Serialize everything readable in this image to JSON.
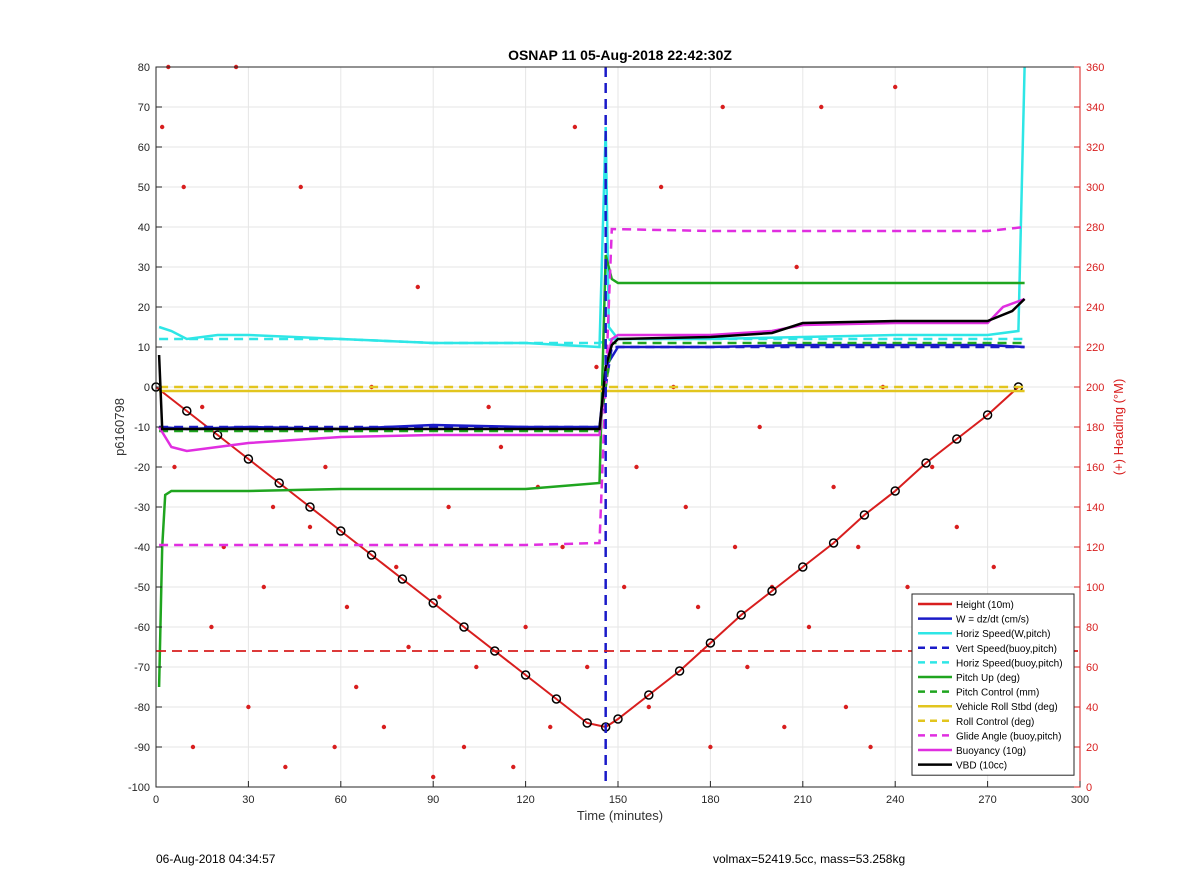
{
  "chart_data": {
    "type": "line",
    "title": "OSNAP 11 05-Aug-2018 22:42:30Z",
    "xlabel": "Time (minutes)",
    "ylabel": "p6160798",
    "y2label": "(+) Heading (°M)",
    "xlim": [
      0,
      300
    ],
    "ylim": [
      -100,
      80
    ],
    "y2lim": [
      0,
      360
    ],
    "xticks": [
      0,
      30,
      60,
      90,
      120,
      150,
      180,
      210,
      240,
      270,
      300
    ],
    "yticks": [
      -100,
      -90,
      -80,
      -70,
      -60,
      -50,
      -40,
      -30,
      -20,
      -10,
      0,
      10,
      20,
      30,
      40,
      50,
      60,
      70,
      80
    ],
    "y2ticks": [
      0,
      20,
      40,
      60,
      80,
      100,
      120,
      140,
      160,
      180,
      200,
      220,
      240,
      260,
      280,
      300,
      320,
      340,
      360
    ],
    "grid": true,
    "legend_position": "bottom-right",
    "colors": {
      "red": "#d81e1e",
      "blue": "#1a1ac8",
      "cyan": "#2ee6e6",
      "green": "#1fa51f",
      "yellow": "#e2c51f",
      "magenta": "#e02ee0",
      "black": "#000000",
      "right_axis": "#d81e1e"
    },
    "vertical_line_x": 146,
    "horizontal_line_y": -66,
    "series": [
      {
        "name": "Height (10m)",
        "color": "#d81e1e",
        "style": "solid",
        "x": [
          0,
          10,
          20,
          30,
          40,
          50,
          60,
          70,
          80,
          90,
          100,
          110,
          120,
          130,
          140,
          146,
          150,
          160,
          170,
          180,
          190,
          200,
          210,
          220,
          230,
          240,
          250,
          260,
          270,
          280
        ],
        "y": [
          0,
          -6,
          -12,
          -18,
          -24,
          -30,
          -36,
          -42,
          -48,
          -54,
          -60,
          -66,
          -72,
          -78,
          -84,
          -85,
          -83,
          -77,
          -71,
          -64,
          -57,
          -51,
          -45,
          -39,
          -32,
          -26,
          -19,
          -13,
          -7,
          0
        ]
      },
      {
        "name": "W = dz/dt (cm/s)",
        "color": "#1a1ac8",
        "style": "solid",
        "x": [
          1,
          10,
          30,
          60,
          90,
          120,
          144,
          146,
          150,
          180,
          210,
          240,
          270,
          282
        ],
        "y": [
          -10,
          -10.5,
          -10,
          -10.5,
          -9.5,
          -10,
          -10,
          5,
          10,
          10,
          10.5,
          10.5,
          10.5,
          10
        ]
      },
      {
        "name": "Horiz Speed(W,pitch)",
        "color": "#2ee6e6",
        "style": "solid",
        "x": [
          1,
          5,
          10,
          20,
          30,
          60,
          90,
          120,
          144,
          146,
          147,
          150,
          180,
          210,
          240,
          270,
          280,
          282
        ],
        "y": [
          15,
          14,
          12,
          13,
          13,
          12,
          11,
          11,
          10,
          65,
          15,
          12,
          12,
          12.5,
          13,
          13,
          14,
          80
        ]
      },
      {
        "name": "Vert Speed(buoy,pitch)",
        "color": "#1a1ac8",
        "style": "dashed",
        "x": [
          1,
          30,
          60,
          90,
          120,
          144,
          148,
          180,
          210,
          240,
          270,
          282
        ],
        "y": [
          -10,
          -10,
          -10,
          -10,
          -10,
          -10,
          10,
          10,
          10,
          10,
          10,
          10
        ]
      },
      {
        "name": "Horiz Speed(buoy,pitch)",
        "color": "#2ee6e6",
        "style": "dashed",
        "x": [
          1,
          30,
          60,
          90,
          120,
          144,
          148,
          180,
          210,
          240,
          270,
          282
        ],
        "y": [
          12,
          12,
          12,
          11,
          11,
          11,
          12,
          12,
          12,
          12,
          12,
          12
        ]
      },
      {
        "name": "Pitch Up (deg)",
        "color": "#1fa51f",
        "style": "solid",
        "x": [
          1,
          2,
          3,
          5,
          10,
          30,
          60,
          90,
          120,
          144,
          146,
          148,
          150,
          180,
          210,
          240,
          270,
          282
        ],
        "y": [
          -75,
          -40,
          -27,
          -26,
          -26,
          -26,
          -25.5,
          -25.5,
          -25.5,
          -24,
          33,
          27,
          26,
          26,
          26,
          26,
          26,
          26
        ]
      },
      {
        "name": "Pitch Control (mm)",
        "color": "#1fa51f",
        "style": "dashed",
        "x": [
          1,
          30,
          60,
          90,
          120,
          144,
          148,
          180,
          210,
          240,
          270,
          282
        ],
        "y": [
          -11,
          -11,
          -11,
          -11,
          -11,
          -11,
          11,
          11,
          11,
          11,
          11,
          11
        ]
      },
      {
        "name": "Vehicle Roll Stbd (deg)",
        "color": "#e2c51f",
        "style": "solid",
        "x": [
          1,
          30,
          60,
          90,
          120,
          144,
          150,
          180,
          210,
          240,
          270,
          282
        ],
        "y": [
          -1,
          -1,
          -1,
          -1,
          -1,
          -1,
          -1,
          -1,
          -1,
          -1,
          -1,
          -1
        ]
      },
      {
        "name": "Roll Control (deg)",
        "color": "#e2c51f",
        "style": "dashed",
        "x": [
          1,
          30,
          60,
          90,
          120,
          144,
          150,
          180,
          210,
          240,
          270,
          282
        ],
        "y": [
          0,
          0,
          0,
          0,
          0,
          0,
          0,
          0,
          0,
          0,
          0,
          0
        ]
      },
      {
        "name": "Glide Angle (buoy,pitch)",
        "color": "#e02ee0",
        "style": "dashed",
        "x": [
          1,
          30,
          60,
          90,
          120,
          144,
          148,
          180,
          210,
          240,
          270,
          282
        ],
        "y": [
          -39.5,
          -39.5,
          -39.5,
          -39.5,
          -39.5,
          -39,
          39.5,
          39,
          39,
          39,
          39,
          40
        ]
      },
      {
        "name": "Buoyancy (10g)",
        "color": "#e02ee0",
        "style": "solid",
        "x": [
          1,
          5,
          10,
          20,
          30,
          60,
          90,
          120,
          144,
          146,
          148,
          150,
          180,
          200,
          210,
          240,
          270,
          275,
          282
        ],
        "y": [
          -10,
          -15,
          -16,
          -15,
          -14,
          -12.5,
          -12,
          -12,
          -12,
          5,
          12,
          13,
          13,
          14,
          15.5,
          16,
          16,
          20,
          22
        ]
      },
      {
        "name": "VBD (10cc)",
        "color": "#000000",
        "style": "solid",
        "x": [
          1,
          2,
          30,
          60,
          90,
          120,
          144,
          146,
          148,
          150,
          180,
          200,
          210,
          240,
          270,
          278,
          282
        ],
        "y": [
          8,
          -10.5,
          -10.5,
          -10.5,
          -10.5,
          -10.5,
          -10.5,
          5,
          10.5,
          12,
          12.5,
          13.5,
          16,
          16.5,
          16.5,
          19,
          22
        ]
      }
    ],
    "heading_points": {
      "x": [
        2,
        4,
        6,
        9,
        12,
        15,
        18,
        22,
        26,
        30,
        35,
        38,
        42,
        47,
        50,
        55,
        58,
        62,
        65,
        70,
        74,
        78,
        82,
        85,
        90,
        92,
        95,
        100,
        104,
        108,
        112,
        116,
        120,
        124,
        128,
        132,
        136,
        140,
        143,
        152,
        156,
        160,
        164,
        168,
        172,
        176,
        180,
        184,
        188,
        192,
        196,
        200,
        204,
        208,
        212,
        216,
        220,
        224,
        228,
        232,
        236,
        240,
        244,
        248,
        252,
        256,
        260,
        264,
        268,
        272,
        276
      ],
      "y": [
        330,
        360,
        160,
        300,
        20,
        190,
        80,
        120,
        360,
        40,
        100,
        140,
        10,
        300,
        130,
        160,
        20,
        90,
        50,
        200,
        30,
        110,
        70,
        250,
        5,
        95,
        140,
        20,
        60,
        190,
        170,
        10,
        80,
        150,
        30,
        120,
        330,
        60,
        210,
        100,
        160,
        40,
        300,
        200,
        140,
        90,
        20,
        340,
        120,
        60,
        180,
        100,
        30,
        260,
        80,
        340,
        150,
        40,
        120,
        20,
        200,
        350,
        100,
        60,
        160,
        40,
        130,
        80,
        20,
        110,
        60
      ]
    }
  },
  "footer": {
    "left": "06-Aug-2018 04:34:57",
    "right": "volmax=52419.5cc, mass=53.258kg"
  }
}
